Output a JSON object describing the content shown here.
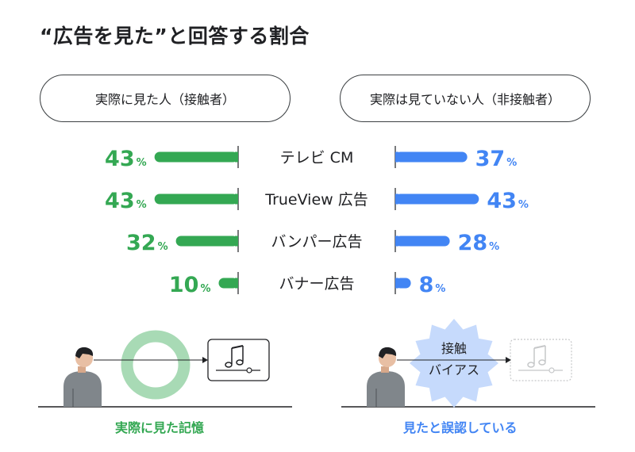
{
  "title": "“広告を見た”と回答する割合",
  "panels": {
    "left_label": "実際に見た人（接触者）",
    "right_label": "実際は見ていない人（非接触者）"
  },
  "chart_data": {
    "type": "bar",
    "categories": [
      "テレビ CM",
      "TrueView 広告",
      "バンパー広告",
      "バナー広告"
    ],
    "series": [
      {
        "name": "実際に見た人（接触者）",
        "values": [
          43,
          43,
          32,
          10
        ],
        "color": "#34a853"
      },
      {
        "name": "実際は見ていない人（非接触者）",
        "values": [
          37,
          43,
          28,
          8
        ],
        "color": "#4285f4"
      }
    ],
    "unit": "%"
  },
  "bottom": {
    "left_caption": "実際に見た記憶",
    "right_caption": "見たと誤認している",
    "burst_line1": "接触",
    "burst_line2": "バイアス"
  },
  "icons": [
    "person-icon",
    "music-note-icon",
    "ring-icon",
    "starburst-icon"
  ]
}
